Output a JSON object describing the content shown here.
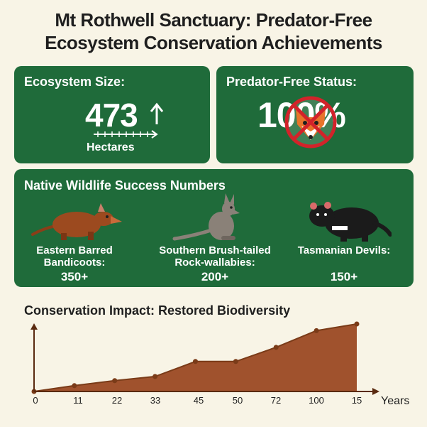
{
  "title": {
    "line1": "Mt Rothwell Sanctuary: Predator-Free",
    "line2": "Ecosystem Conservation Achievements"
  },
  "ecosystem": {
    "label": "Ecosystem Size:",
    "value": "473",
    "unit": "Hectares"
  },
  "predator": {
    "label": "Predator-Free Status:",
    "value": "100%",
    "icon": "crossed-out-fox-icon"
  },
  "wildlife": {
    "title": "Native Wildlife Success Numbers",
    "animals": [
      {
        "line1": "Eastern Barred",
        "line2": "Bandicoots:",
        "count": "350+",
        "icon": "bandicoot-icon"
      },
      {
        "line1": "Southern Brush-tailed",
        "line2": "Rock-wallabies:",
        "count": "200+",
        "icon": "rock-wallaby-icon"
      },
      {
        "line1": "Tasmanian Devils:",
        "line2": "",
        "count": "150+",
        "icon": "tasmanian-devil-icon"
      }
    ]
  },
  "colors": {
    "card": "#1f6b3a",
    "area": "#a0522d",
    "line": "#7a3b18",
    "background": "#f8f4e6"
  },
  "chart_data": {
    "type": "area",
    "title": "Conservation Impact: Restored Biodiversity",
    "xlabel": "Years",
    "ylabel": "",
    "categories": [
      "0",
      "11",
      "22",
      "33",
      "45",
      "50",
      "72",
      "100",
      "15"
    ],
    "values": [
      0,
      7,
      13,
      18,
      36,
      36,
      53,
      73,
      81
    ],
    "ylim": [
      0,
      100
    ],
    "grid": false,
    "legend": "none"
  }
}
